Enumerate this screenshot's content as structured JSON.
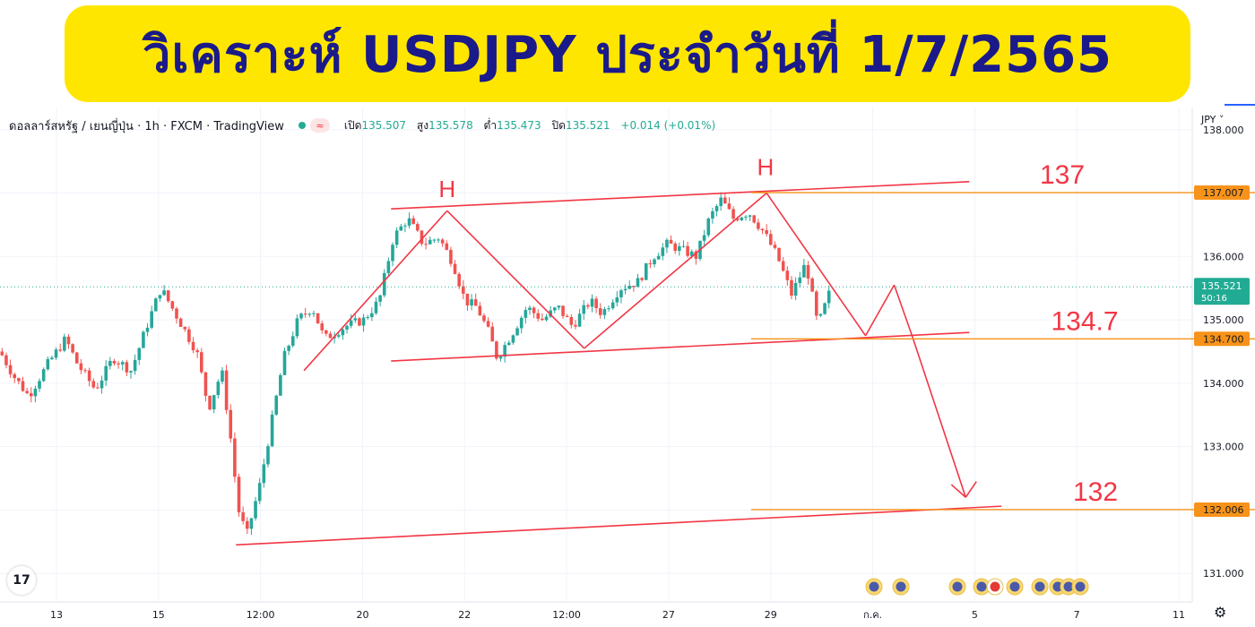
{
  "banner": {
    "title": "วิเคราะห์ USDJPY ประจำวันที่ 1/7/2565"
  },
  "legend": {
    "symbol": "ดอลลาร์สหรัฐ / เยนญี่ปุ่น · 1h · FXCM · TradingView",
    "open_label": "เปิด",
    "open": "135.507",
    "high_label": "สูง",
    "high": "135.578",
    "low_label": "ต่ำ",
    "low": "135.473",
    "close_label": "ปิด",
    "close": "135.521",
    "change": "+0.014 (+0.01%)",
    "pill": "≈"
  },
  "currency": "JPY ˅",
  "logo": "17",
  "colors": {
    "up": "#26a69a",
    "down": "#ef5350",
    "drawing": "#f23645",
    "level": "#f7931a",
    "price": "#22ab94"
  },
  "chart_data": {
    "type": "candlestick",
    "ylim": [
      130.55,
      138.35
    ],
    "yticks": [
      "138.000",
      "137.000",
      "136.000",
      "135.000",
      "134.000",
      "133.000",
      "132.000",
      "131.000"
    ],
    "xticks": [
      "13",
      "15",
      "12:00",
      "20",
      "22",
      "12:00",
      "27",
      "29",
      "ก.ค.",
      "5",
      "7",
      "11"
    ],
    "price_path": [
      [
        0,
        134.5
      ],
      [
        0.012,
        134.1
      ],
      [
        0.024,
        133.8
      ],
      [
        0.04,
        134.3
      ],
      [
        0.055,
        134.7
      ],
      [
        0.065,
        134.3
      ],
      [
        0.08,
        133.9
      ],
      [
        0.095,
        134.4
      ],
      [
        0.11,
        134.2
      ],
      [
        0.125,
        135.0
      ],
      [
        0.135,
        135.5
      ],
      [
        0.15,
        135.0
      ],
      [
        0.165,
        134.5
      ],
      [
        0.175,
        133.6
      ],
      [
        0.186,
        134.2
      ],
      [
        0.193,
        133.2
      ],
      [
        0.2,
        132.0
      ],
      [
        0.207,
        131.6
      ],
      [
        0.218,
        132.4
      ],
      [
        0.228,
        133.4
      ],
      [
        0.238,
        134.4
      ],
      [
        0.25,
        135.0
      ],
      [
        0.262,
        135.2
      ],
      [
        0.272,
        134.7
      ],
      [
        0.29,
        134.9
      ],
      [
        0.305,
        135.0
      ],
      [
        0.318,
        135.3
      ],
      [
        0.33,
        136.3
      ],
      [
        0.342,
        136.6
      ],
      [
        0.355,
        136.2
      ],
      [
        0.368,
        136.3
      ],
      [
        0.38,
        135.9
      ],
      [
        0.39,
        135.3
      ],
      [
        0.4,
        135.2
      ],
      [
        0.41,
        134.8
      ],
      [
        0.417,
        134.4
      ],
      [
        0.43,
        134.8
      ],
      [
        0.442,
        135.2
      ],
      [
        0.455,
        135.0
      ],
      [
        0.468,
        135.2
      ],
      [
        0.48,
        134.9
      ],
      [
        0.495,
        135.3
      ],
      [
        0.505,
        135.1
      ],
      [
        0.52,
        135.5
      ],
      [
        0.535,
        135.6
      ],
      [
        0.548,
        136.0
      ],
      [
        0.56,
        136.2
      ],
      [
        0.572,
        136.1
      ],
      [
        0.584,
        136.0
      ],
      [
        0.595,
        136.6
      ],
      [
        0.605,
        136.9
      ],
      [
        0.615,
        136.6
      ],
      [
        0.628,
        136.7
      ],
      [
        0.64,
        136.4
      ],
      [
        0.652,
        136.0
      ],
      [
        0.664,
        135.4
      ],
      [
        0.676,
        135.9
      ],
      [
        0.686,
        134.9
      ],
      [
        0.697,
        135.5
      ]
    ],
    "levels": [
      {
        "value": 137.007,
        "text": "137",
        "label": "137.007"
      },
      {
        "value": 134.7,
        "text": "134.7",
        "label": "134.700"
      },
      {
        "value": 132.006,
        "text": "132",
        "label": "132.006"
      }
    ],
    "last_price": {
      "value": 135.521,
      "label": "135.521",
      "countdown": "50:16"
    },
    "annotations": [
      "H",
      "H"
    ]
  }
}
